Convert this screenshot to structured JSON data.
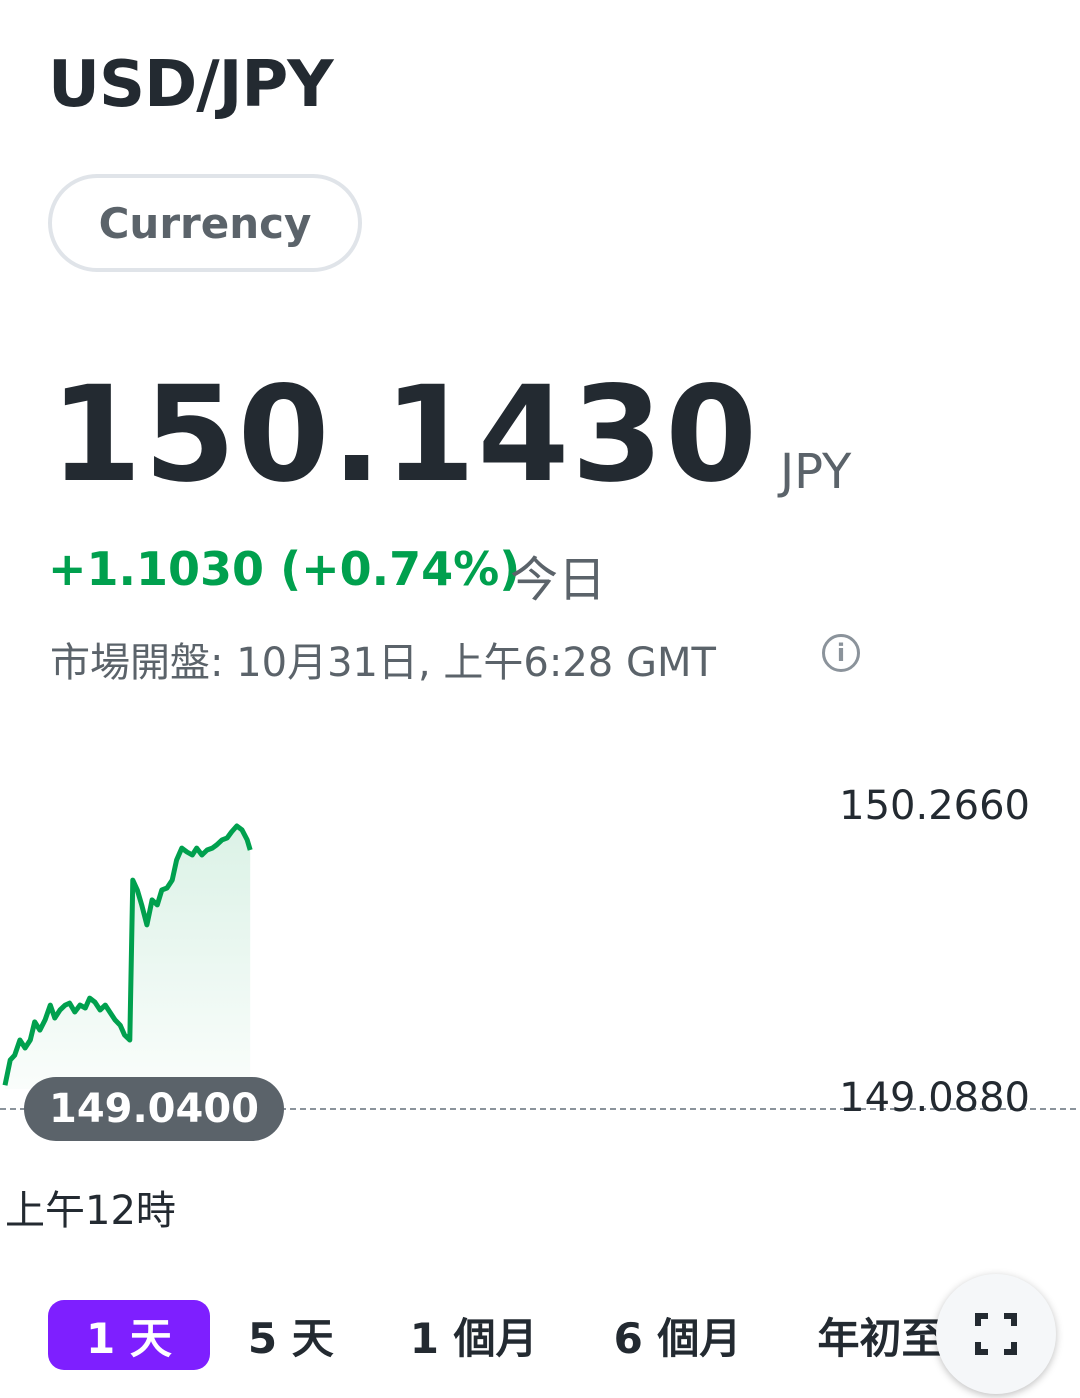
{
  "header": {
    "symbol": "USD/JPY",
    "tag": "Currency"
  },
  "quote": {
    "price": "150.1430",
    "currency": "JPY",
    "change": "+1.1030 (+0.74%)",
    "period": "今日",
    "market_status": "市場開盤: 10月31日, 上午6:28 GMT"
  },
  "chart_data": {
    "type": "line",
    "color": "#00a04e",
    "x": [
      0,
      7,
      13,
      20,
      27,
      34,
      40,
      47,
      54,
      61,
      67,
      74,
      81,
      87,
      94,
      101,
      108,
      114,
      121,
      128,
      135,
      141,
      148,
      155,
      161,
      168,
      172,
      178,
      184,
      191,
      198,
      205,
      211,
      218,
      225,
      231,
      238,
      245,
      252,
      258,
      265,
      272,
      279,
      285,
      292,
      299,
      305,
      312,
      319,
      326,
      330
    ],
    "values": [
      149.136,
      149.237,
      149.257,
      149.318,
      149.286,
      149.318,
      149.391,
      149.358,
      149.399,
      149.459,
      149.407,
      149.439,
      149.459,
      149.467,
      149.431,
      149.459,
      149.447,
      149.487,
      149.471,
      149.439,
      149.459,
      149.431,
      149.399,
      149.378,
      149.338,
      149.318,
      149.963,
      149.923,
      149.863,
      149.782,
      149.883,
      149.863,
      149.923,
      149.931,
      149.963,
      150.044,
      150.092,
      150.076,
      150.064,
      150.092,
      150.064,
      150.084,
      150.092,
      150.105,
      150.125,
      150.133,
      150.157,
      150.181,
      150.165,
      150.125,
      150.084
    ],
    "xlim": [
      0,
      1440
    ],
    "xticks": [
      {
        "value": 0,
        "label": "上午12時"
      }
    ],
    "ylim": [
      148.915,
      150.447
    ],
    "yticks": [
      {
        "value": 149.088,
        "label": "149.0880"
      },
      {
        "value": 150.266,
        "label": "150.2660"
      }
    ],
    "previous_close": {
      "value": 149.04,
      "label": "149.0400"
    }
  },
  "tabs": [
    "1 天",
    "5 天",
    "1 個月",
    "6 個月",
    "年初至今"
  ],
  "selected_tab": 0
}
